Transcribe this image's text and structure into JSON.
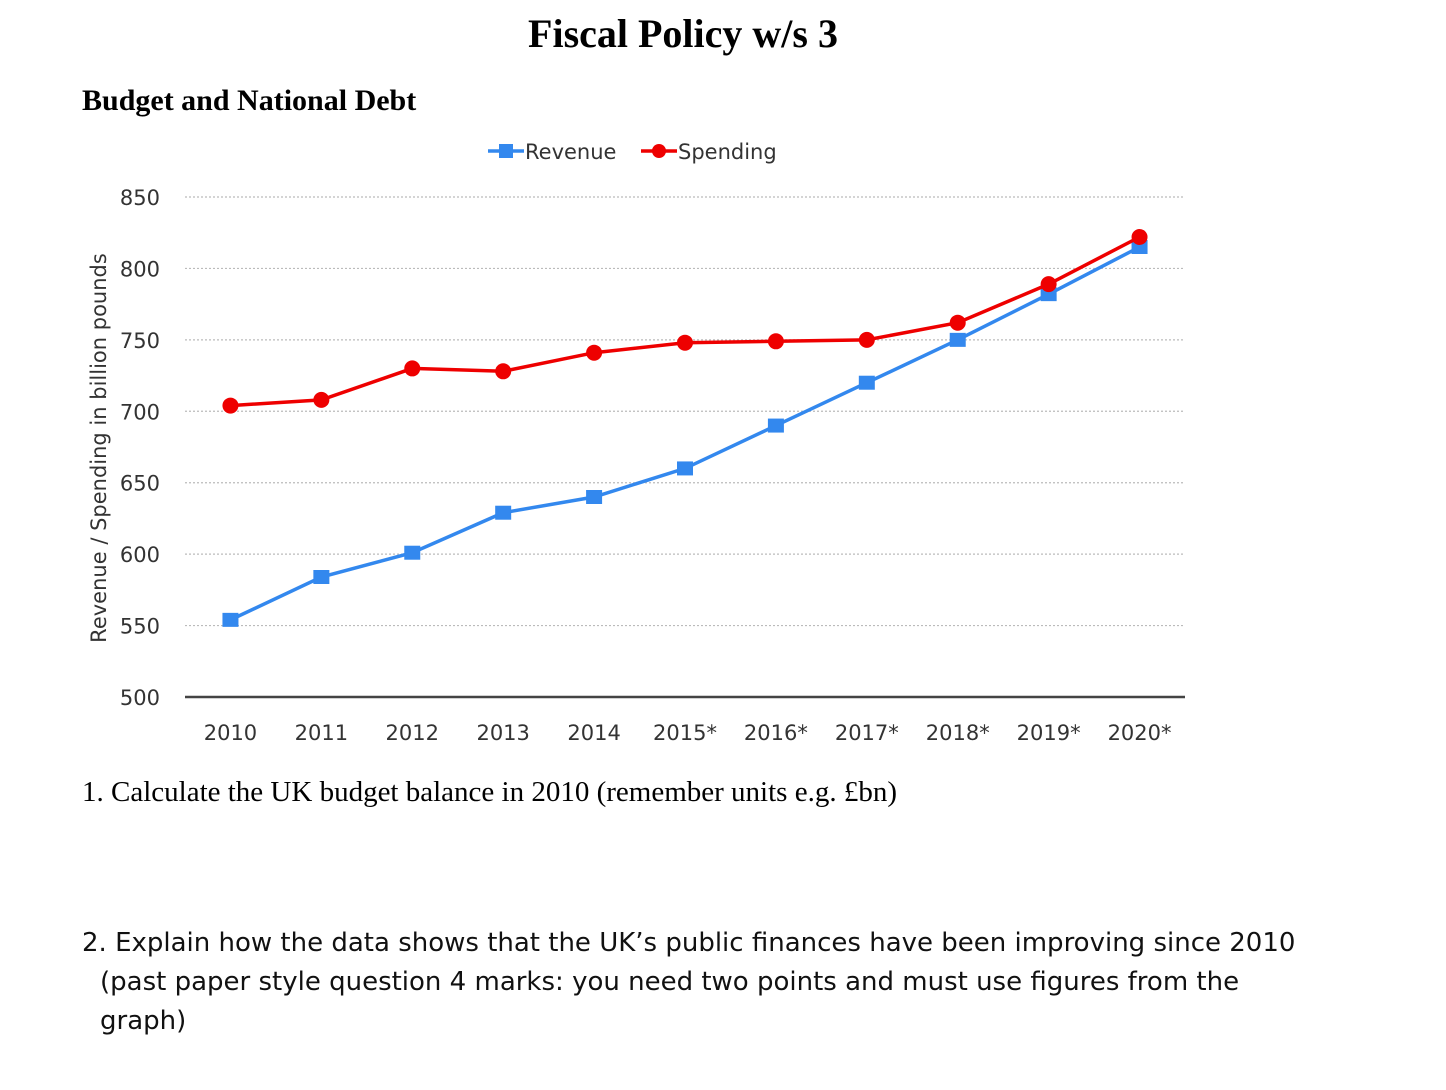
{
  "document": {
    "title": "Fiscal Policy w/s 3",
    "subtitle": "Budget and National Debt",
    "questions": [
      {
        "text": "1. Calculate the UK budget balance in 2010 (remember units e.g. £bn)"
      },
      {
        "line1": "2. Explain how the data shows that the UK’s public finances have been improving since 2010",
        "line2": "(past paper style question 4 marks: you need two points and must use figures from the",
        "line3": "graph)"
      }
    ]
  },
  "chart_data": {
    "type": "line",
    "title": "",
    "xlabel": "",
    "ylabel": "Revenue / Spending in billion pounds",
    "categories": [
      "2010",
      "2011",
      "2012",
      "2013",
      "2014",
      "2015*",
      "2016*",
      "2017*",
      "2018*",
      "2019*",
      "2020*"
    ],
    "ylim": [
      500,
      850
    ],
    "yticks": [
      "500",
      "550",
      "600",
      "650",
      "700",
      "750",
      "800",
      "850"
    ],
    "grid": true,
    "legend_position": "top",
    "series": [
      {
        "name": "Revenue",
        "color": "#3388ee",
        "marker": "square",
        "values": [
          554,
          584,
          601,
          629,
          640,
          660,
          690,
          720,
          750,
          782,
          815
        ]
      },
      {
        "name": "Spending",
        "color": "#ee0000",
        "marker": "circle",
        "values": [
          704,
          708,
          730,
          728,
          741,
          748,
          749,
          750,
          762,
          789,
          822
        ]
      }
    ]
  }
}
